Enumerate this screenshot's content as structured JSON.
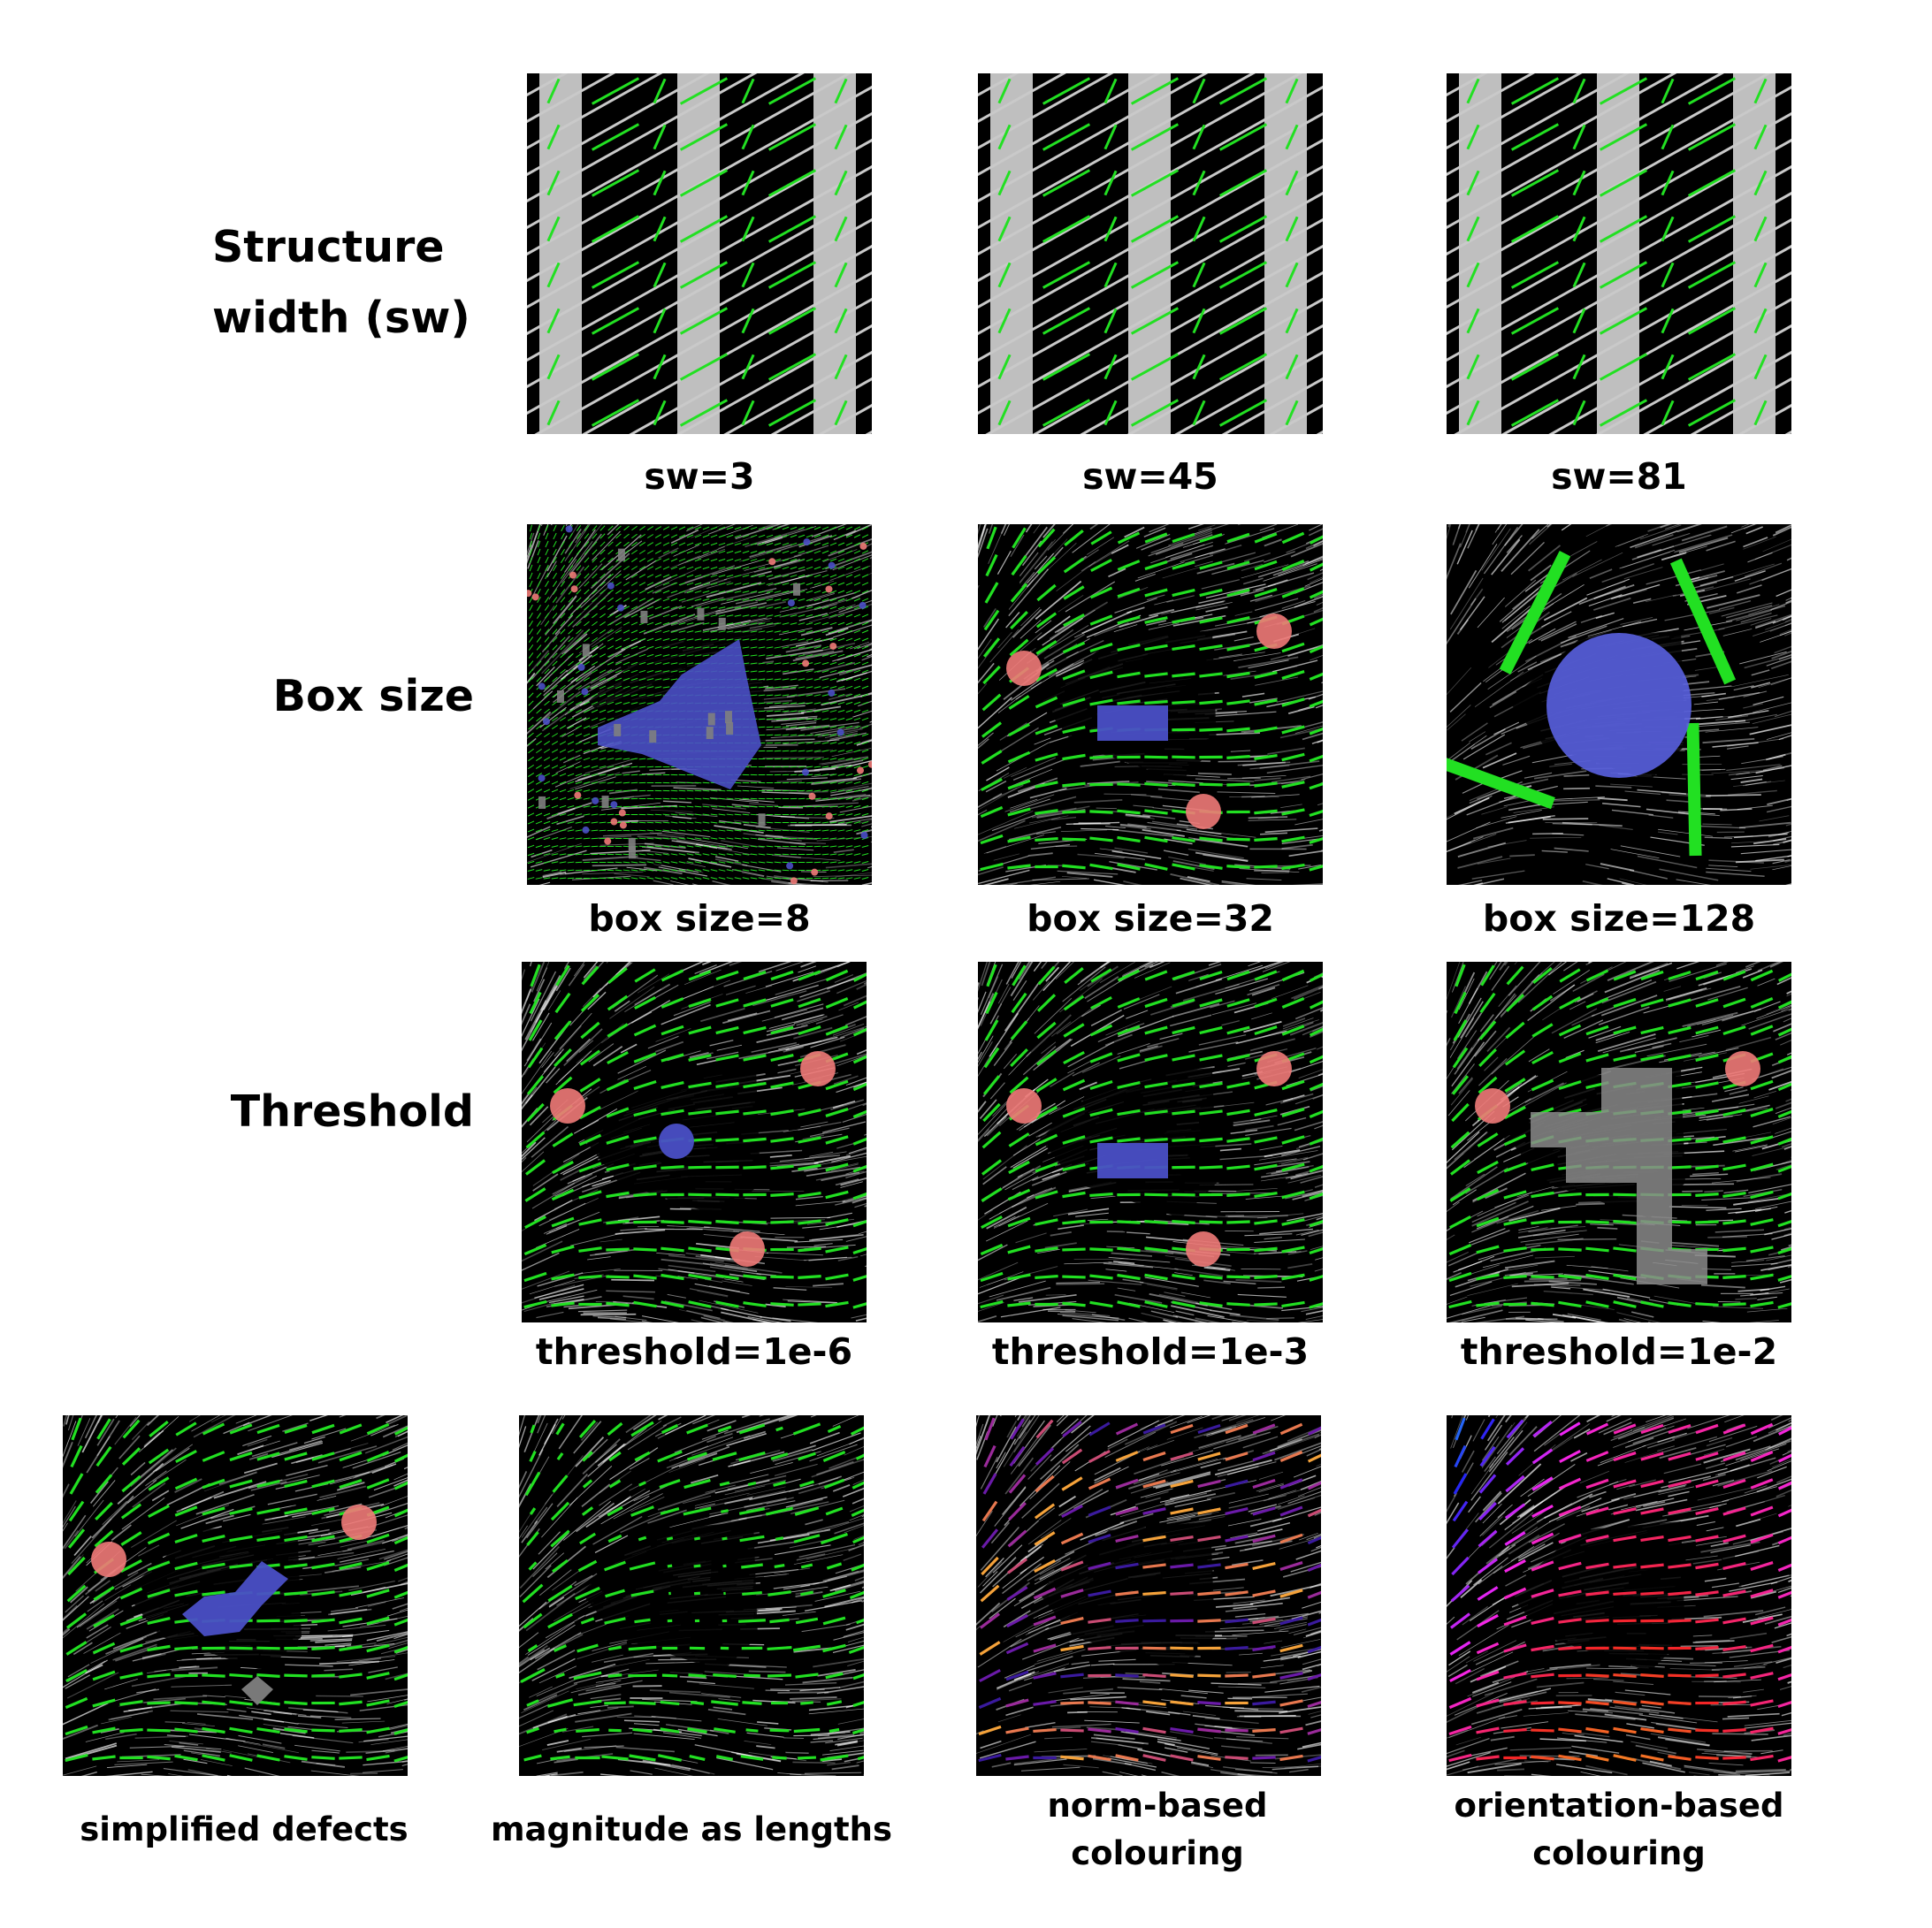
{
  "rows": [
    {
      "label": "Structure\nwidth (sw)",
      "captions": [
        "sw=3",
        "sw=45",
        "sw=81"
      ]
    },
    {
      "label": "Box size",
      "captions": [
        "box size=8",
        "box size=32",
        "box size=128"
      ]
    },
    {
      "label": "Threshold",
      "captions": [
        "threshold=1e-6",
        "threshold=1e-3",
        "threshold=1e-2"
      ]
    },
    {
      "label": "",
      "captions": [
        "simplified defects",
        "magnitude as lengths",
        "norm-based\ncolouring",
        "orientation-based\ncolouring"
      ]
    }
  ],
  "colors": {
    "vector": "#22e022",
    "positive_defect": "#f07a78",
    "negative_defect": "#4a4fc6",
    "undetermined_defect": "#7f7f7f",
    "stripe": "#bfbfbf",
    "background": "#000000"
  }
}
